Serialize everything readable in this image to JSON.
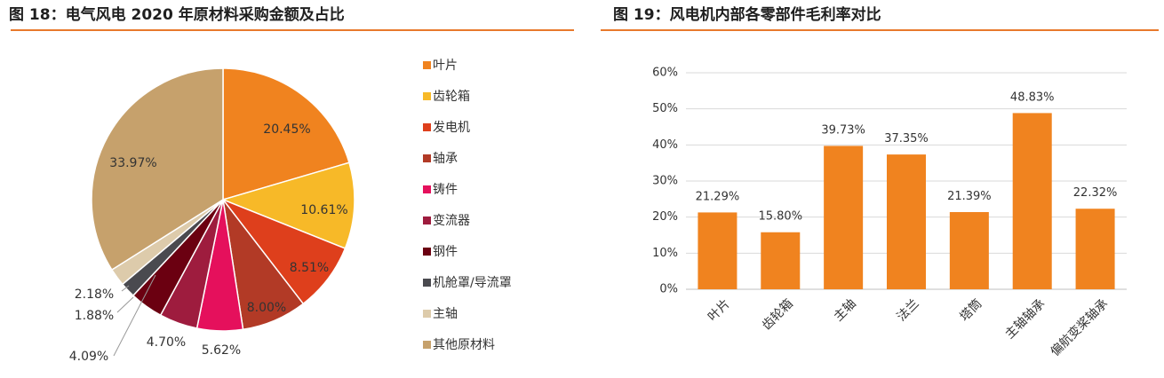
{
  "figures": {
    "left_title": "图 18：电气风电 2020 年原材料采购金额及占比",
    "right_title": "图 19：风电机内部各零部件毛利率对比"
  },
  "colors": {
    "accent_rule": "#e8792c",
    "bar_fill": "#f0831f"
  },
  "chart_data": [
    {
      "type": "pie",
      "title": "图 18：电气风电 2020 年原材料采购金额及占比",
      "slices": [
        {
          "name": "叶片",
          "value": 20.45,
          "label": "20.45%",
          "color": "#f0831f"
        },
        {
          "name": "齿轮箱",
          "value": 10.61,
          "label": "10.61%",
          "color": "#f7b928"
        },
        {
          "name": "发电机",
          "value": 8.51,
          "label": "8.51%",
          "color": "#de3f1c"
        },
        {
          "name": "轴承",
          "value": 8.0,
          "label": "8.00%",
          "color": "#b23a26"
        },
        {
          "name": "铸件",
          "value": 5.62,
          "label": "5.62%",
          "color": "#e5105c"
        },
        {
          "name": "变流器",
          "value": 4.7,
          "label": "4.70%",
          "color": "#9e1c3e"
        },
        {
          "name": "钢件",
          "value": 4.09,
          "label": "4.09%",
          "color": "#6b0011"
        },
        {
          "name": "机舱罩/导流罩",
          "value": 1.88,
          "label": "1.88%",
          "color": "#4a4a4f"
        },
        {
          "name": "主轴",
          "value": 2.18,
          "label": "2.18%",
          "color": "#ddcbab"
        },
        {
          "name": "其他原材料",
          "value": 33.97,
          "label": "33.97%",
          "color": "#c6a16c"
        }
      ],
      "legend": "right"
    },
    {
      "type": "bar",
      "title": "图 19：风电机内部各零部件毛利率对比",
      "categories": [
        "叶片",
        "齿轮箱",
        "主轴",
        "法兰",
        "塔筒",
        "主轴轴承",
        "偏航变桨轴承"
      ],
      "values": [
        21.29,
        15.8,
        39.73,
        37.35,
        21.39,
        48.83,
        22.32
      ],
      "value_labels": [
        "21.29%",
        "15.80%",
        "39.73%",
        "37.35%",
        "21.39%",
        "48.83%",
        "22.32%"
      ],
      "ylim": [
        0,
        60
      ],
      "yticks": [
        "0%",
        "10%",
        "20%",
        "30%",
        "40%",
        "50%",
        "60%"
      ],
      "grid": true,
      "legend": "none"
    }
  ]
}
